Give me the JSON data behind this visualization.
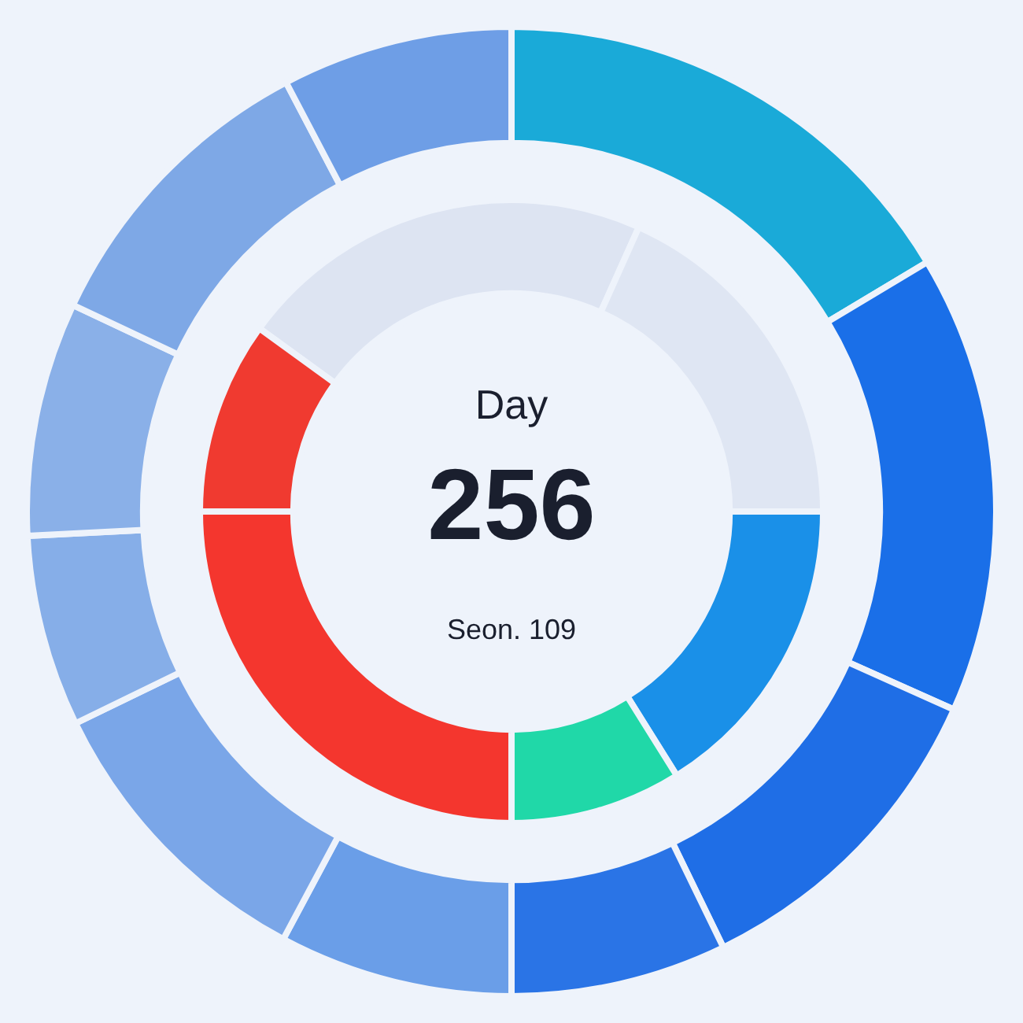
{
  "chart_data": [
    {
      "type": "donut",
      "categories": [
        null,
        null,
        null,
        null,
        null,
        null,
        null,
        null,
        null,
        null
      ],
      "values": [
        16.4,
        15.3,
        11.1,
        7.2,
        7.8,
        10,
        6.4,
        7.8,
        10.3,
        7.7
      ],
      "colors": [
        "#1aaad8",
        "#1a6fe8",
        "#1f6ee6",
        "#2a74e6",
        "#6a9ee8",
        "#7aa6e8",
        "#86aee8",
        "#8ab0e8",
        "#7ea8e6",
        "#6e9ee6"
      ],
      "legend": false
    },
    {
      "type": "donut",
      "title": "Day",
      "annotations": [
        "256",
        "Seon. 109"
      ],
      "categories": [
        null,
        null,
        null,
        null,
        null,
        null
      ],
      "values": [
        21.7,
        18.3,
        16.1,
        8.9,
        25,
        10
      ],
      "colors": [
        "#dde4f2",
        "#dfe6f3",
        "#1a90e8",
        "#20d8a8",
        "#f4362e",
        "#f03a30"
      ],
      "legend": false
    }
  ]
}
